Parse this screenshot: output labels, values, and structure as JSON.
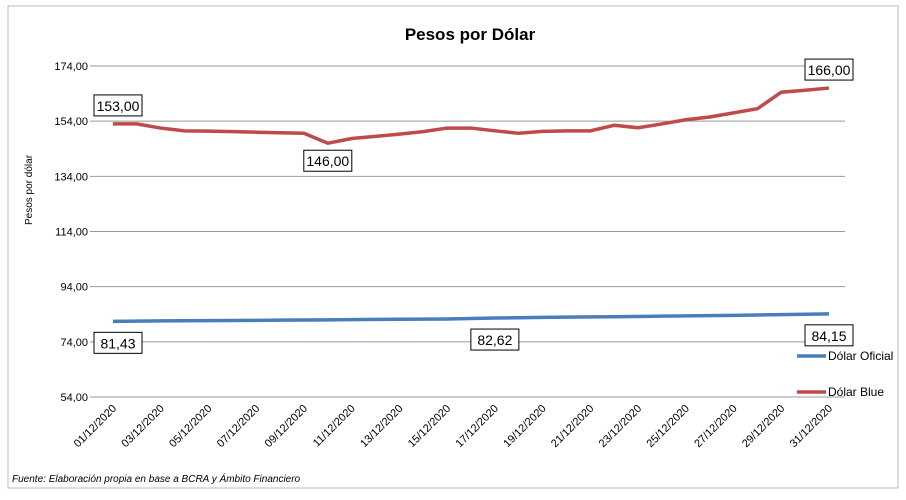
{
  "chart_data": {
    "type": "line",
    "title": "Pesos por Dólar",
    "y_label": "Pesos por dólar",
    "source": "Fuente: Elaboración propia en base a BCRA y Ámbito Financiero",
    "categories": [
      "01/12/2020",
      null,
      "03/12/2020",
      null,
      "05/12/2020",
      null,
      "07/12/2020",
      null,
      "09/12/2020",
      null,
      "11/12/2020",
      null,
      "13/12/2020",
      null,
      "15/12/2020",
      null,
      "17/12/2020",
      null,
      "19/12/2020",
      null,
      "21/12/2020",
      null,
      "23/12/2020",
      null,
      "25/12/2020",
      null,
      "27/12/2020",
      null,
      "29/12/2020",
      null,
      "31/12/2020"
    ],
    "series": [
      {
        "name": "Dólar Oficial",
        "color": "#4a7ebb",
        "values": [
          81.43,
          81.5,
          81.6,
          81.65,
          81.7,
          81.75,
          81.8,
          81.85,
          81.9,
          81.95,
          82.05,
          82.15,
          82.2,
          82.25,
          82.3,
          82.45,
          82.62,
          82.75,
          82.85,
          82.95,
          83.05,
          83.1,
          83.2,
          83.3,
          83.4,
          83.5,
          83.6,
          83.75,
          83.85,
          84.0,
          84.15
        ],
        "value_labels": [
          "81,43",
          null,
          null,
          null,
          null,
          null,
          null,
          null,
          null,
          null,
          null,
          null,
          null,
          null,
          null,
          null,
          "82,62",
          null,
          null,
          null,
          null,
          null,
          null,
          null,
          null,
          null,
          null,
          null,
          null,
          null,
          "84,15"
        ]
      },
      {
        "name": "Dólar Blue",
        "color": "#be4b48",
        "values": [
          153,
          153,
          151.5,
          150.5,
          150.4,
          150.2,
          150,
          149.8,
          149.6,
          146,
          147.7,
          148.5,
          149.3,
          150.2,
          151.5,
          151.5,
          150.5,
          149.6,
          150.3,
          150.5,
          150.5,
          152.5,
          151.6,
          153,
          154.5,
          155.5,
          157,
          158.5,
          164.5,
          165.2,
          166
        ],
        "value_labels": [
          "153,00",
          null,
          null,
          null,
          null,
          null,
          null,
          null,
          null,
          "146,00",
          null,
          null,
          null,
          null,
          null,
          null,
          null,
          null,
          null,
          null,
          null,
          null,
          null,
          null,
          null,
          null,
          null,
          null,
          null,
          null,
          "166,00"
        ]
      }
    ],
    "ylim": [
      54,
      174
    ],
    "yticks": [
      {
        "value": 54,
        "label": "54,00"
      },
      {
        "value": 74,
        "label": "74,00"
      },
      {
        "value": 94,
        "label": "94,00"
      },
      {
        "value": 114,
        "label": "114,00"
      },
      {
        "value": 134,
        "label": "134,00"
      },
      {
        "value": 154,
        "label": "154,00"
      },
      {
        "value": 174,
        "label": "174,00"
      }
    ],
    "grid": true,
    "legend": "right"
  }
}
